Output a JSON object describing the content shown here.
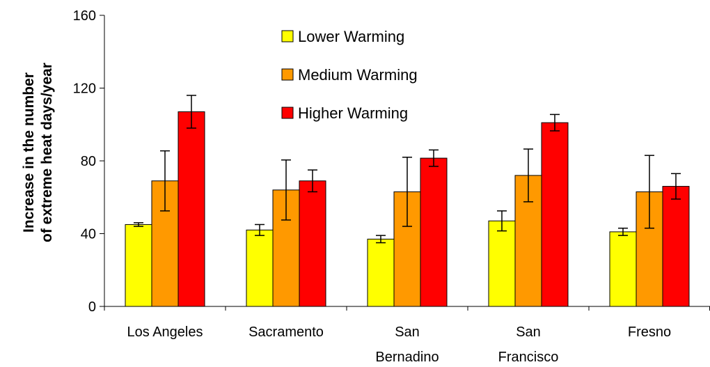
{
  "chart_data": {
    "type": "bar",
    "y_label": "Increase in the number\nof extreme heat days/year",
    "categories": [
      "Los Angeles",
      "Sacramento",
      "San\nBernadino",
      "San\nFrancisco",
      "Fresno"
    ],
    "series": [
      {
        "name": "Lower Warming",
        "color": "#ffff00",
        "values": [
          45,
          42,
          37,
          47,
          41
        ],
        "errors": [
          1,
          3,
          2,
          5.5,
          2
        ]
      },
      {
        "name": "Medium Warming",
        "color": "#ff9900",
        "values": [
          69,
          64,
          63,
          72,
          63
        ],
        "errors": [
          16.5,
          16.5,
          19,
          14.5,
          20
        ]
      },
      {
        "name": "Higher Warming",
        "color": "#ff0000",
        "values": [
          107,
          69,
          81.5,
          101,
          66
        ],
        "errors": [
          9,
          6,
          4.5,
          4.5,
          7
        ]
      }
    ],
    "ylim": [
      0,
      160
    ],
    "yticks": [
      0,
      40,
      80,
      120,
      160
    ]
  }
}
